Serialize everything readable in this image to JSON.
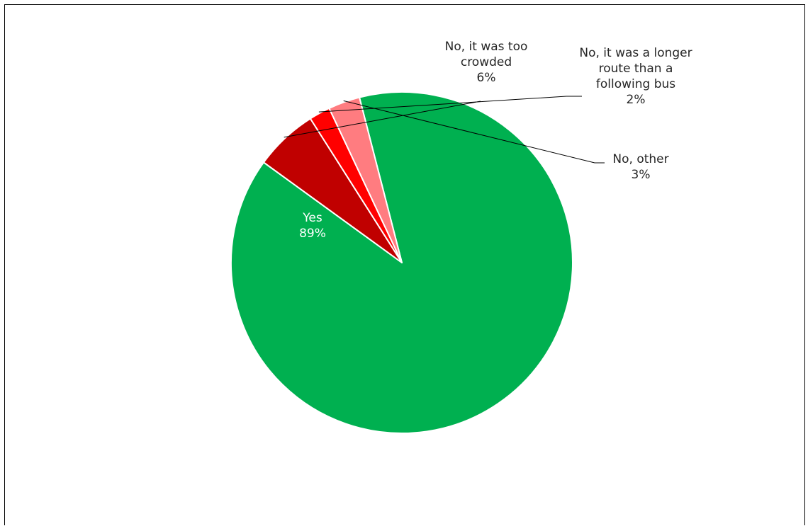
{
  "header_caption": "",
  "chart_data": {
    "type": "pie",
    "title": "",
    "start_angle_deg": -14.4,
    "direction": "clockwise",
    "slices": [
      {
        "label_lines": [
          "Yes"
        ],
        "value": 89,
        "value_label": "89%",
        "color": "#00B050",
        "label_color": "#ffffff"
      },
      {
        "label_lines": [
          "No, it was too",
          "crowded"
        ],
        "value": 6,
        "value_label": "6%",
        "color": "#C00000",
        "label_color": "#262626"
      },
      {
        "label_lines": [
          "No, it was a longer",
          "route than a",
          "following bus"
        ],
        "value": 2,
        "value_label": "2%",
        "color": "#FF0000",
        "label_color": "#262626"
      },
      {
        "label_lines": [
          "No, other"
        ],
        "value": 3,
        "value_label": "3%",
        "color": "#FF7C80",
        "label_color": "#262626"
      }
    ]
  }
}
